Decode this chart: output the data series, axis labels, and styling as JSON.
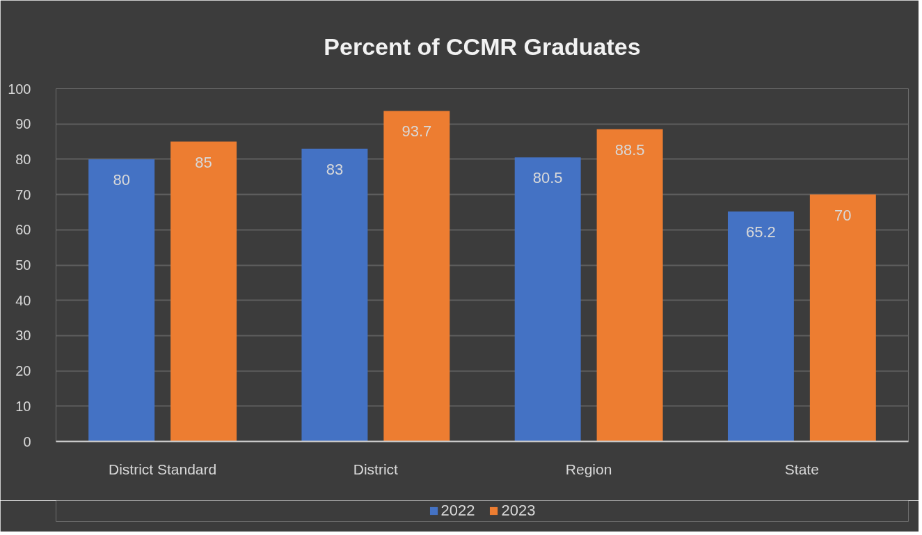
{
  "chart_data": {
    "type": "bar",
    "title": "Percent of CCMR Graduates",
    "categories": [
      "District Standard",
      "District",
      "Region",
      "State"
    ],
    "series": [
      {
        "name": "2022",
        "color": "#4472c4",
        "values": [
          80,
          83,
          80.5,
          65.2
        ]
      },
      {
        "name": "2023",
        "color": "#ed7d31",
        "values": [
          85,
          93.7,
          88.5,
          70
        ]
      }
    ],
    "ylim": [
      0,
      100
    ],
    "yticks": [
      0,
      10,
      20,
      30,
      40,
      50,
      60,
      70,
      80,
      90,
      100
    ],
    "grid": "y",
    "legend": "bottom",
    "data_labels": true
  }
}
